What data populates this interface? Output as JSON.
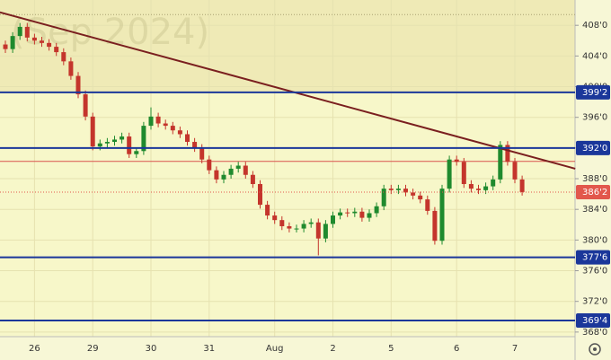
{
  "chart_data": {
    "type": "candlestick",
    "watermark": "(Sep 2024)",
    "categories": [
      null,
      null,
      null,
      null,
      "26",
      null,
      null,
      null,
      null,
      null,
      null,
      null,
      "29",
      null,
      null,
      null,
      null,
      null,
      null,
      null,
      "30",
      null,
      null,
      null,
      null,
      null,
      null,
      null,
      "31",
      null,
      null,
      null,
      null,
      null,
      null,
      null,
      null,
      "Aug",
      null,
      null,
      null,
      null,
      null,
      null,
      null,
      "2",
      null,
      null,
      null,
      null,
      null,
      null,
      null,
      "5",
      null,
      null,
      null,
      null,
      null,
      null,
      null,
      null,
      "6",
      null,
      null,
      null,
      null,
      null,
      null,
      null,
      "7",
      null
    ],
    "open": [
      405.5,
      404.9,
      406.6,
      407.8,
      406.4,
      406.0,
      405.7,
      405.2,
      404.5,
      403.3,
      401.4,
      399.0,
      396.1,
      392.2,
      392.6,
      392.8,
      393.1,
      393.5,
      391.2,
      391.6,
      394.9,
      396.1,
      395.2,
      394.9,
      394.3,
      393.8,
      392.8,
      392.0,
      390.5,
      389.1,
      387.9,
      388.5,
      389.3,
      389.7,
      388.5,
      387.3,
      384.6,
      383.2,
      382.6,
      381.8,
      381.5,
      381.5,
      382.1,
      382.3,
      380.2,
      382.1,
      383.2,
      383.6,
      383.5,
      383.7,
      382.9,
      383.5,
      384.4,
      386.7,
      386.5,
      386.7,
      386.2,
      385.8,
      385.3,
      383.8,
      379.9,
      386.7,
      390.5,
      390.2,
      387.3,
      386.7,
      386.5,
      387.0,
      387.9,
      392.4,
      390.2,
      387.9
    ],
    "high": [
      406.0,
      407.1,
      408.3,
      408.3,
      406.9,
      406.5,
      406.2,
      405.7,
      405.0,
      403.8,
      401.9,
      399.5,
      396.6,
      393.1,
      393.3,
      393.6,
      394.0,
      394.0,
      392.1,
      395.4,
      397.3,
      396.6,
      395.7,
      395.4,
      394.8,
      394.3,
      393.3,
      392.5,
      391.0,
      389.6,
      389.0,
      389.8,
      390.2,
      390.2,
      389.0,
      387.8,
      385.1,
      383.7,
      383.1,
      382.3,
      382.0,
      382.6,
      382.8,
      382.8,
      382.6,
      383.7,
      384.1,
      384.1,
      384.2,
      384.2,
      384.0,
      384.9,
      387.2,
      387.2,
      387.2,
      387.2,
      386.7,
      386.3,
      385.8,
      384.3,
      387.2,
      391.0,
      391.0,
      390.7,
      387.8,
      387.2,
      387.5,
      388.4,
      392.9,
      392.9,
      390.7,
      388.4
    ],
    "low": [
      404.4,
      404.4,
      406.1,
      405.9,
      405.5,
      405.2,
      404.7,
      404.0,
      402.8,
      400.9,
      398.5,
      395.6,
      391.7,
      391.7,
      392.1,
      392.3,
      392.6,
      390.7,
      390.7,
      391.1,
      394.4,
      394.7,
      394.4,
      393.8,
      393.3,
      392.3,
      391.5,
      390.0,
      388.6,
      387.4,
      387.4,
      388.0,
      388.8,
      388.0,
      386.8,
      384.1,
      382.7,
      382.1,
      381.3,
      381.0,
      381.0,
      381.0,
      381.6,
      378.0,
      379.7,
      381.6,
      382.7,
      383.0,
      383.0,
      382.4,
      382.4,
      383.0,
      383.9,
      386.0,
      386.0,
      385.7,
      385.3,
      384.8,
      383.3,
      379.4,
      379.4,
      386.2,
      389.7,
      386.8,
      386.2,
      386.0,
      386.0,
      386.5,
      387.4,
      389.7,
      387.4,
      385.8
    ],
    "close": [
      404.9,
      406.6,
      407.8,
      406.4,
      406.0,
      405.7,
      405.2,
      404.5,
      403.3,
      401.4,
      399.0,
      396.1,
      392.2,
      392.6,
      392.8,
      393.1,
      393.5,
      391.2,
      391.6,
      394.9,
      396.1,
      395.2,
      394.9,
      394.3,
      393.8,
      392.8,
      392.0,
      390.5,
      389.1,
      387.9,
      388.5,
      389.3,
      389.7,
      388.5,
      387.3,
      384.6,
      383.2,
      382.6,
      381.8,
      381.5,
      381.5,
      382.1,
      382.3,
      380.2,
      382.1,
      383.2,
      383.6,
      383.5,
      383.7,
      382.9,
      383.5,
      384.4,
      386.7,
      386.5,
      386.7,
      386.2,
      385.8,
      385.3,
      383.8,
      379.9,
      386.7,
      390.5,
      390.2,
      387.3,
      386.7,
      386.5,
      387.0,
      387.9,
      392.4,
      390.2,
      387.9,
      386.25
    ],
    "up_color": "#1f8a2e",
    "down_color": "#c4352c",
    "ylim": [
      367.4,
      411.3
    ],
    "yticks": [
      {
        "value": 368,
        "label": "368'0"
      },
      {
        "value": 372,
        "label": "372'0"
      },
      {
        "value": 376,
        "label": "376'0"
      },
      {
        "value": 380,
        "label": "380'0"
      },
      {
        "value": 384,
        "label": "384'0"
      },
      {
        "value": 388,
        "label": "388'0"
      },
      {
        "value": 392,
        "label": "392'0"
      },
      {
        "value": 396,
        "label": "396'0"
      },
      {
        "value": 400,
        "label": "400'0"
      },
      {
        "value": 404,
        "label": "404'0"
      },
      {
        "value": 408,
        "label": "408'0"
      }
    ],
    "levels": [
      {
        "value": 399.25,
        "label": "399'2",
        "color": "#1b379a"
      },
      {
        "value": 392,
        "label": "392'0",
        "color": "#1b379a"
      },
      {
        "value": 377.75,
        "label": "377'6",
        "color": "#1b379a"
      },
      {
        "value": 369.5,
        "label": "369'4",
        "color": "#1b379a"
      }
    ],
    "last_price": {
      "value": 386.25,
      "label": "386'2",
      "color": "#e2574c"
    },
    "lines": [
      {
        "value": 390.25,
        "color": "#d9534f",
        "style": "solid"
      },
      {
        "value": 409.4,
        "color": "#a8a070",
        "style": "dotted"
      }
    ],
    "trendline": {
      "x": [
        -0.75,
        78.3
      ],
      "y": [
        409.7,
        389.3
      ],
      "color": "#7a1f1f"
    },
    "grid": true
  }
}
